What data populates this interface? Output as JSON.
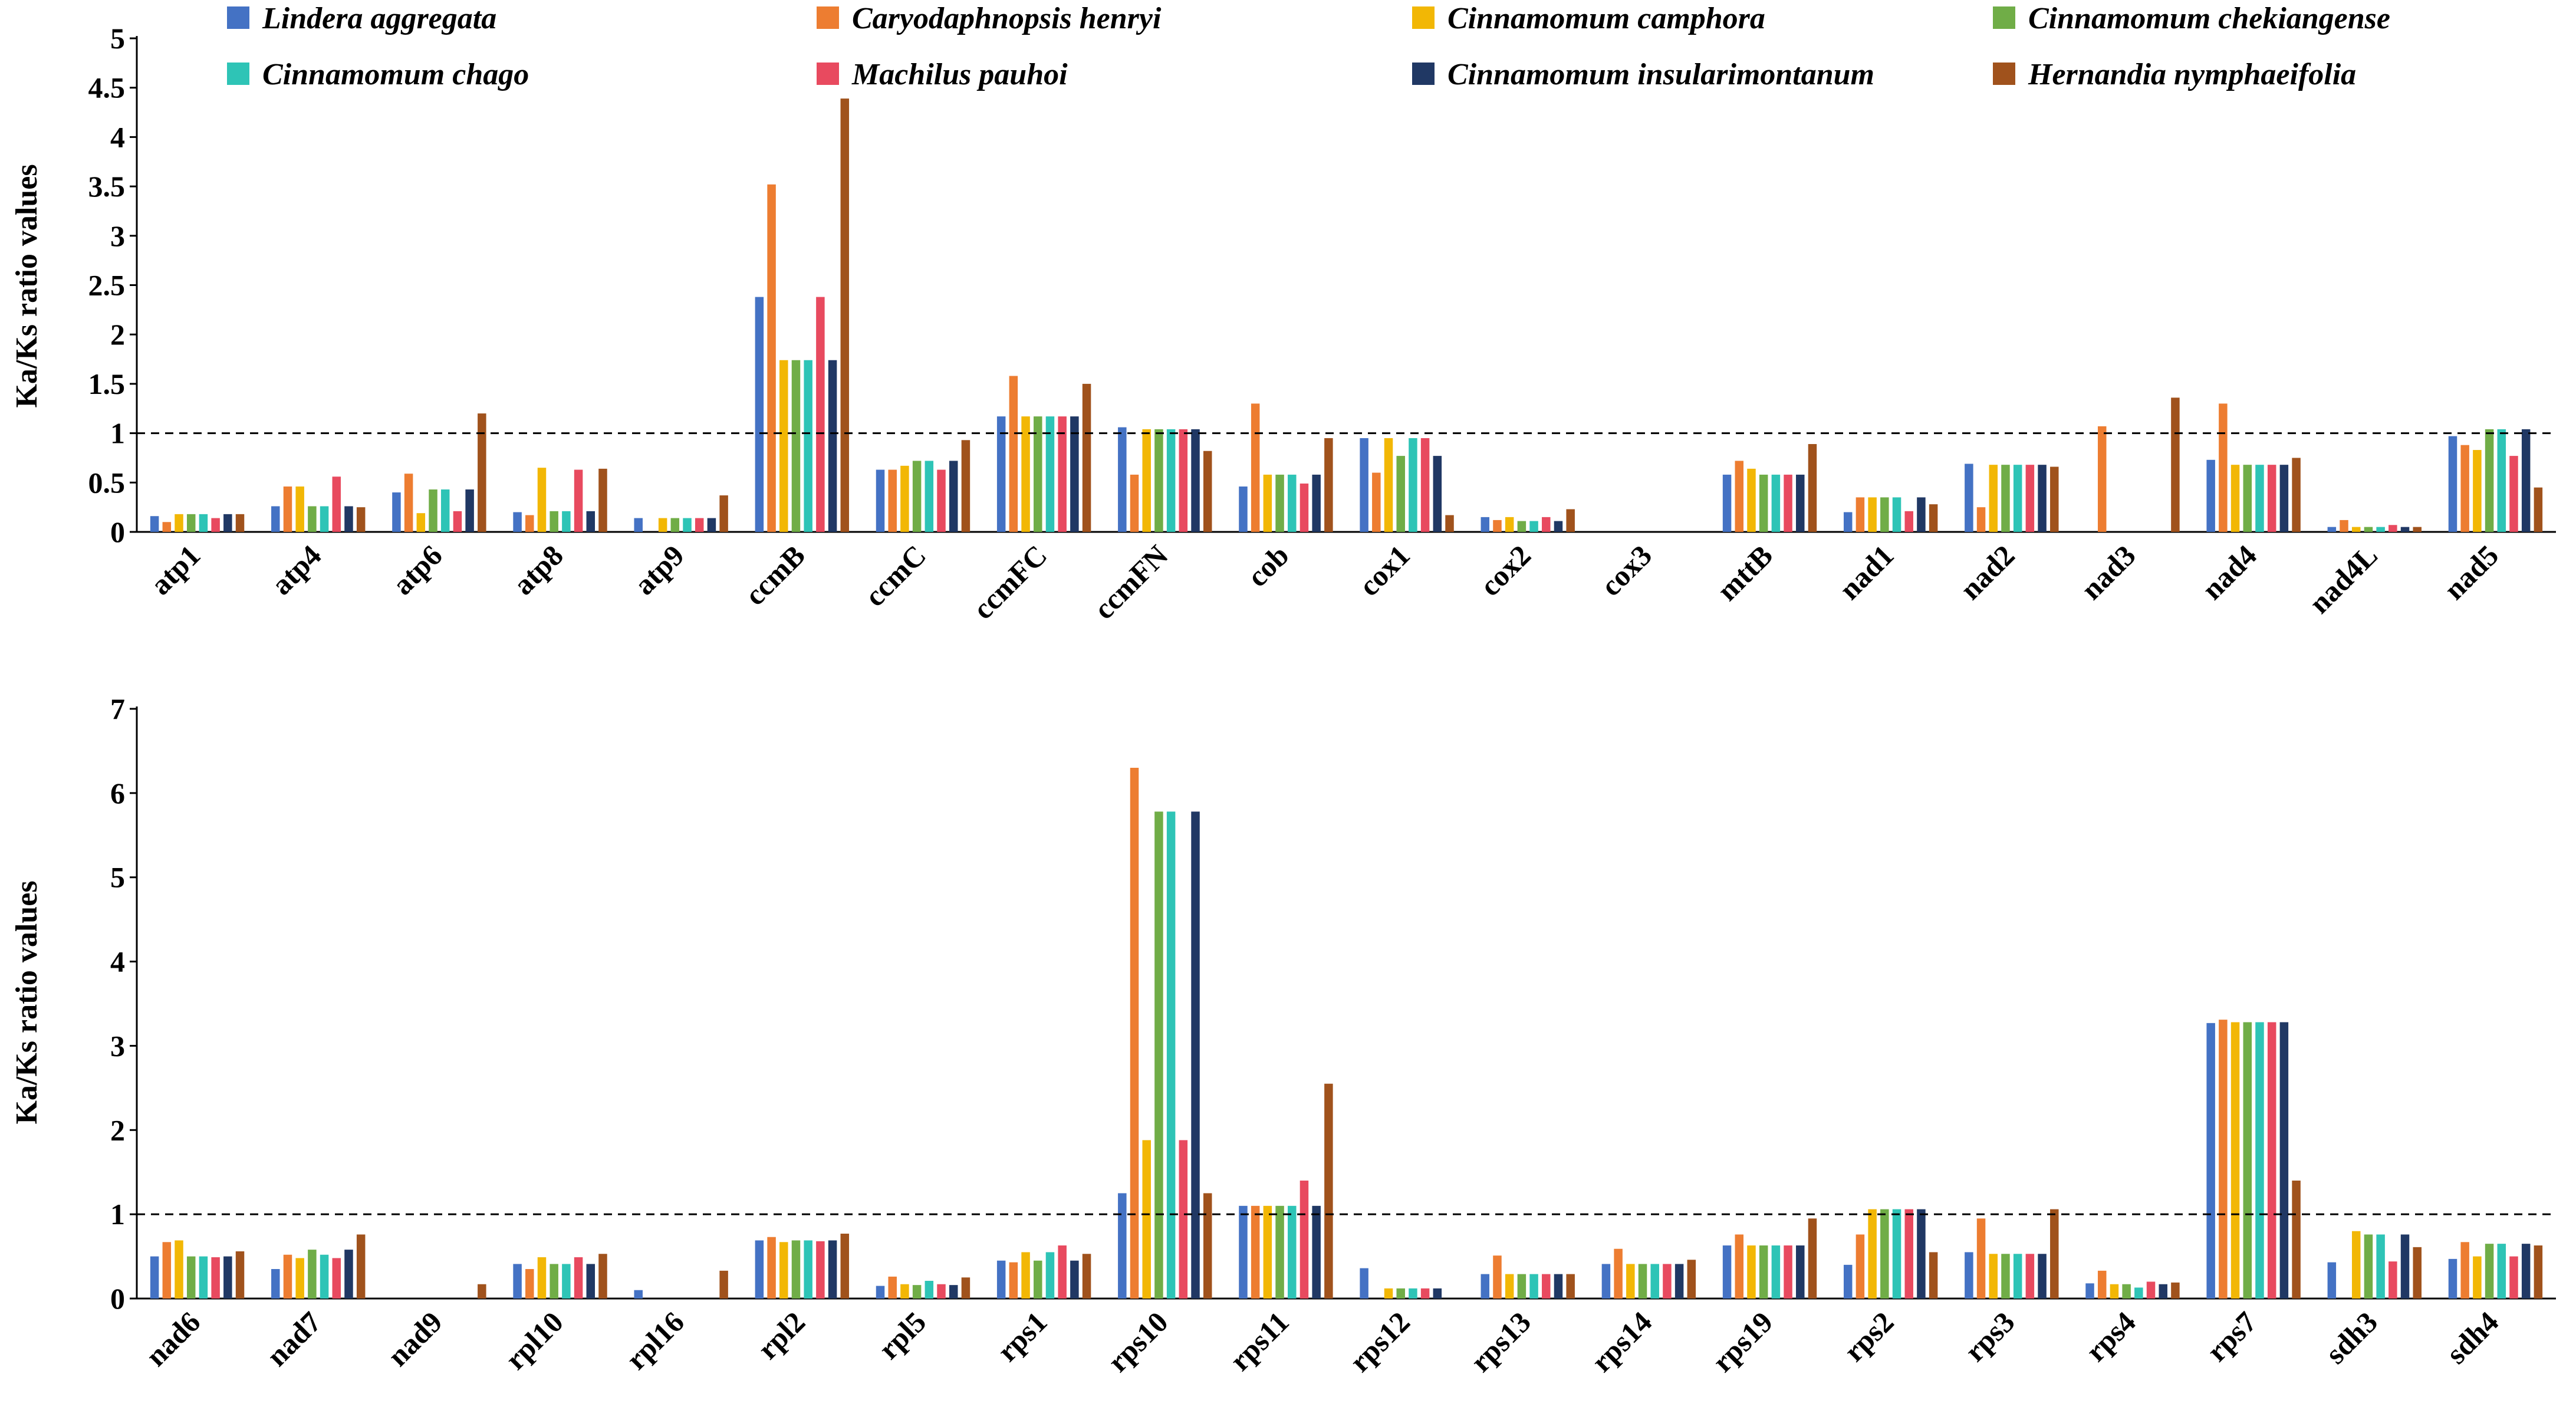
{
  "chart_data": {
    "type": "bar",
    "legend": {
      "position": "top",
      "entries": [
        {
          "name": "Lindera aggregata",
          "color": "#4472C4"
        },
        {
          "name": "Caryodaphnopsis henryi",
          "color": "#ED7D31"
        },
        {
          "name": "Cinnamomum camphora",
          "color": "#F2B705"
        },
        {
          "name": "Cinnamomum chekiangense",
          "color": "#70AD47"
        },
        {
          "name": "Cinnamomum chago",
          "color": "#2EC4B6"
        },
        {
          "name": "Machilus pauhoi",
          "color": "#E84A5F"
        },
        {
          "name": "Cinnamomum insularimontanum",
          "color": "#203864"
        },
        {
          "name": "Hernandia nymphaeifolia",
          "color": "#A0521C"
        }
      ]
    },
    "panels": [
      {
        "ylabel": "Ka/Ks ratio values",
        "ylim": [
          0,
          5
        ],
        "yticks": [
          "0",
          "0.5",
          "1",
          "1.5",
          "2",
          "2.5",
          "3",
          "3.5",
          "4",
          "4.5",
          "5"
        ],
        "reference_line": 1,
        "categories": [
          "atp1",
          "atp4",
          "atp6",
          "atp8",
          "atp9",
          "ccmB",
          "ccmC",
          "ccmFC",
          "ccmFN",
          "cob",
          "cox1",
          "cox2",
          "cox3",
          "mttB",
          "nad1",
          "nad2",
          "nad3",
          "nad4",
          "nad4L",
          "nad5"
        ],
        "series": [
          {
            "name": "Lindera aggregata",
            "values": [
              0.16,
              0.26,
              0.4,
              0.2,
              0.14,
              2.38,
              0.63,
              1.17,
              1.06,
              0.46,
              0.95,
              0.15,
              0,
              0.58,
              0.2,
              0.69,
              0,
              0.73,
              0.05,
              0.97
            ]
          },
          {
            "name": "Caryodaphnopsis henryi",
            "values": [
              0.1,
              0.46,
              0.59,
              0.17,
              0,
              3.52,
              0.63,
              1.58,
              0.58,
              1.3,
              0.6,
              0.12,
              0,
              0.72,
              0.35,
              0.25,
              1.07,
              1.3,
              0.12,
              0.88
            ]
          },
          {
            "name": "Cinnamomum camphora",
            "values": [
              0.18,
              0.46,
              0.19,
              0.65,
              0.14,
              1.74,
              0.67,
              1.17,
              1.04,
              0.58,
              0.95,
              0.15,
              0,
              0.64,
              0.35,
              0.68,
              0,
              0.68,
              0.05,
              0.83
            ]
          },
          {
            "name": "Cinnamomum chekiangense",
            "values": [
              0.18,
              0.26,
              0.43,
              0.21,
              0.14,
              1.74,
              0.72,
              1.17,
              1.04,
              0.58,
              0.77,
              0.11,
              0,
              0.58,
              0.35,
              0.68,
              0,
              0.68,
              0.05,
              1.04
            ]
          },
          {
            "name": "Cinnamomum chago",
            "values": [
              0.18,
              0.26,
              0.43,
              0.21,
              0.14,
              1.74,
              0.72,
              1.17,
              1.04,
              0.58,
              0.95,
              0.11,
              0,
              0.58,
              0.35,
              0.68,
              0,
              0.68,
              0.05,
              1.04
            ]
          },
          {
            "name": "Machilus pauhoi",
            "values": [
              0.14,
              0.56,
              0.21,
              0.63,
              0.14,
              2.38,
              0.63,
              1.17,
              1.04,
              0.49,
              0.95,
              0.15,
              0,
              0.58,
              0.21,
              0.68,
              0,
              0.68,
              0.07,
              0.77
            ]
          },
          {
            "name": "Cinnamomum insularimontanum",
            "values": [
              0.18,
              0.26,
              0.43,
              0.21,
              0.14,
              1.74,
              0.72,
              1.17,
              1.04,
              0.58,
              0.77,
              0.11,
              0,
              0.58,
              0.35,
              0.68,
              0,
              0.68,
              0.05,
              1.04
            ]
          },
          {
            "name": "Hernandia nymphaeifolia",
            "values": [
              0.18,
              0.25,
              1.2,
              0.64,
              0.37,
              4.39,
              0.93,
              1.5,
              0.82,
              0.95,
              0.17,
              0.23,
              0,
              0.89,
              0.28,
              0.66,
              1.36,
              0.75,
              0.05,
              0.45
            ]
          }
        ]
      },
      {
        "ylabel": "Ka/Ks ratio values",
        "ylim": [
          0,
          7
        ],
        "yticks": [
          "0",
          "1",
          "2",
          "3",
          "4",
          "5",
          "6",
          "7"
        ],
        "reference_line": 1,
        "categories": [
          "nad6",
          "nad7",
          "nad9",
          "rpl10",
          "rpl16",
          "rpl2",
          "rpl5",
          "rps1",
          "rps10",
          "rps11",
          "rps12",
          "rps13",
          "rps14",
          "rps19",
          "rps2",
          "rps3",
          "rps4",
          "rps7",
          "sdh3",
          "sdh4"
        ],
        "series": [
          {
            "name": "Lindera aggregata",
            "values": [
              0.5,
              0.35,
              0,
              0.41,
              0.1,
              0.69,
              0.15,
              0.45,
              1.25,
              1.1,
              0.36,
              0.29,
              0.41,
              0.63,
              0.4,
              0.55,
              0.18,
              3.27,
              0.43,
              0.47
            ]
          },
          {
            "name": "Caryodaphnopsis henryi",
            "values": [
              0.67,
              0.52,
              0,
              0.35,
              0,
              0.73,
              0.26,
              0.43,
              6.3,
              1.1,
              0,
              0.51,
              0.59,
              0.76,
              0.76,
              0.95,
              0.33,
              3.31,
              0,
              0.67
            ]
          },
          {
            "name": "Cinnamomum camphora",
            "values": [
              0.69,
              0.48,
              0,
              0.49,
              0,
              0.67,
              0.17,
              0.55,
              1.88,
              1.1,
              0.12,
              0.29,
              0.41,
              0.63,
              1.06,
              0.53,
              0.17,
              3.28,
              0.8,
              0.5
            ]
          },
          {
            "name": "Cinnamomum chekiangense",
            "values": [
              0.5,
              0.58,
              0,
              0.41,
              0,
              0.69,
              0.16,
              0.45,
              5.78,
              1.1,
              0.12,
              0.29,
              0.41,
              0.63,
              1.06,
              0.53,
              0.17,
              3.28,
              0.76,
              0.65
            ]
          },
          {
            "name": "Cinnamomum chago",
            "values": [
              0.5,
              0.52,
              0,
              0.41,
              0,
              0.69,
              0.21,
              0.55,
              5.78,
              1.1,
              0.12,
              0.29,
              0.41,
              0.63,
              1.06,
              0.53,
              0.13,
              3.28,
              0.76,
              0.65
            ]
          },
          {
            "name": "Machilus pauhoi",
            "values": [
              0.49,
              0.48,
              0,
              0.49,
              0,
              0.68,
              0.17,
              0.63,
              1.88,
              1.4,
              0.12,
              0.29,
              0.41,
              0.63,
              1.06,
              0.53,
              0.2,
              3.28,
              0.44,
              0.5
            ]
          },
          {
            "name": "Cinnamomum insularimontanum",
            "values": [
              0.5,
              0.58,
              0,
              0.41,
              0,
              0.69,
              0.16,
              0.45,
              5.78,
              1.1,
              0.12,
              0.29,
              0.41,
              0.63,
              1.06,
              0.53,
              0.17,
              3.28,
              0.76,
              0.65
            ]
          },
          {
            "name": "Hernandia nymphaeifolia",
            "values": [
              0.56,
              0.76,
              0.17,
              0.53,
              0.33,
              0.77,
              0.25,
              0.53,
              1.25,
              2.55,
              0,
              0.29,
              0.46,
              0.95,
              0.55,
              1.06,
              0.19,
              1.4,
              0.61,
              0.63
            ]
          }
        ]
      }
    ]
  }
}
